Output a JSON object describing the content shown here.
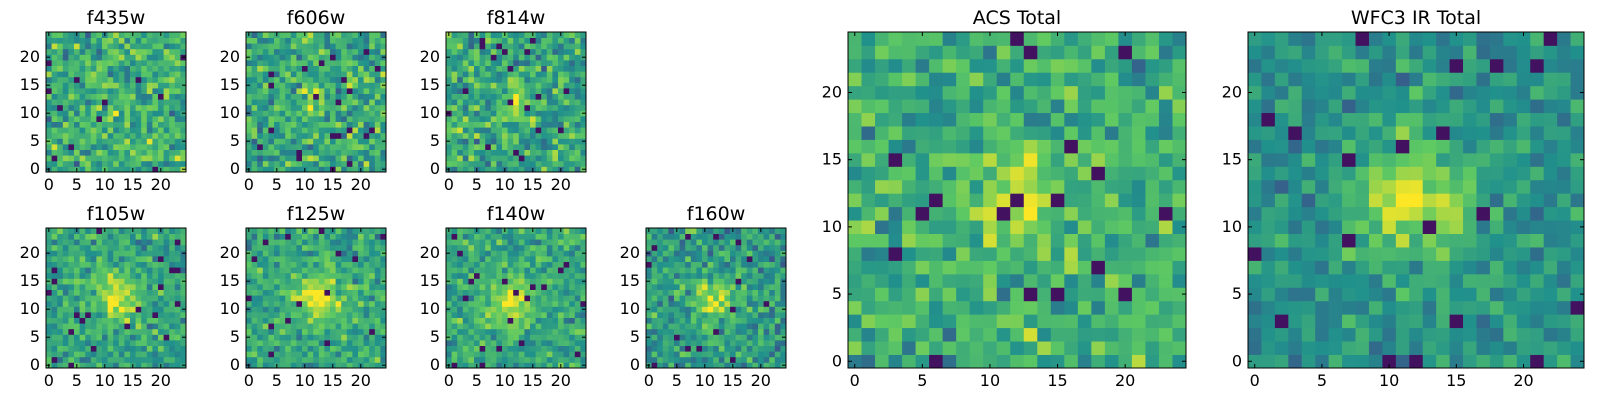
{
  "chart_data": {
    "type": "heatmap",
    "colormap": "viridis",
    "colormap_stops": [
      "#440154",
      "#3b528b",
      "#21918c",
      "#5ec962",
      "#fde725"
    ],
    "grid_size": 25,
    "axis_range": [
      0,
      24
    ],
    "panels": [
      {
        "id": "f435w",
        "title": "f435w",
        "xticks": [
          0,
          5,
          10,
          15,
          20
        ],
        "yticks": [
          0,
          5,
          10,
          15,
          20
        ],
        "source": {
          "cx": 12,
          "cy": 12,
          "amplitude": 0.05,
          "sigma": 3,
          "noise": 0.18,
          "base": 0.62,
          "seed": 11
        }
      },
      {
        "id": "f606w",
        "title": "f606w",
        "xticks": [
          0,
          5,
          10,
          15,
          20
        ],
        "yticks": [
          0,
          5,
          10,
          15,
          20
        ],
        "source": {
          "cx": 12,
          "cy": 12,
          "amplitude": 0.22,
          "sigma": 2,
          "noise": 0.18,
          "base": 0.6,
          "seed": 23
        }
      },
      {
        "id": "f814w",
        "title": "f814w",
        "xticks": [
          0,
          5,
          10,
          15,
          20
        ],
        "yticks": [
          0,
          5,
          10,
          15,
          20
        ],
        "source": {
          "cx": 12,
          "cy": 12,
          "amplitude": 0.25,
          "sigma": 2,
          "noise": 0.18,
          "base": 0.6,
          "seed": 37
        }
      },
      {
        "id": "f105w",
        "title": "f105w",
        "xticks": [
          0,
          5,
          10,
          15,
          20
        ],
        "yticks": [
          0,
          5,
          10,
          15,
          20
        ],
        "source": {
          "cx": 12,
          "cy": 12,
          "amplitude": 0.35,
          "sigma": 3,
          "noise": 0.14,
          "base": 0.58,
          "seed": 41
        }
      },
      {
        "id": "f125w",
        "title": "f125w",
        "xticks": [
          0,
          5,
          10,
          15,
          20
        ],
        "yticks": [
          0,
          5,
          10,
          15,
          20
        ],
        "source": {
          "cx": 12,
          "cy": 12,
          "amplitude": 0.35,
          "sigma": 3,
          "noise": 0.14,
          "base": 0.6,
          "seed": 53
        }
      },
      {
        "id": "f140w",
        "title": "f140w",
        "xticks": [
          0,
          5,
          10,
          15,
          20
        ],
        "yticks": [
          0,
          5,
          10,
          15,
          20
        ],
        "source": {
          "cx": 11,
          "cy": 11,
          "amplitude": 0.35,
          "sigma": 3,
          "noise": 0.14,
          "base": 0.6,
          "seed": 67
        }
      },
      {
        "id": "f160w",
        "title": "f160w",
        "xticks": [
          0,
          5,
          10,
          15,
          20
        ],
        "yticks": [
          0,
          5,
          10,
          15,
          20
        ],
        "source": {
          "cx": 12,
          "cy": 12,
          "amplitude": 0.35,
          "sigma": 2.5,
          "noise": 0.16,
          "base": 0.55,
          "seed": 79
        }
      },
      {
        "id": "acs-total",
        "title": "ACS Total",
        "xticks": [
          0,
          5,
          10,
          15,
          20
        ],
        "yticks": [
          0,
          5,
          10,
          15,
          20
        ],
        "source": {
          "cx": 12,
          "cy": 12,
          "amplitude": 0.25,
          "sigma": 2.5,
          "noise": 0.16,
          "base": 0.62,
          "seed": 97
        }
      },
      {
        "id": "wfc3-ir-total",
        "title": "WFC3 IR Total",
        "xticks": [
          0,
          5,
          10,
          15,
          20
        ],
        "yticks": [
          0,
          5,
          10,
          15,
          20
        ],
        "source": {
          "cx": 12,
          "cy": 12,
          "amplitude": 0.4,
          "sigma": 3,
          "noise": 0.12,
          "base": 0.52,
          "seed": 101
        }
      }
    ]
  }
}
